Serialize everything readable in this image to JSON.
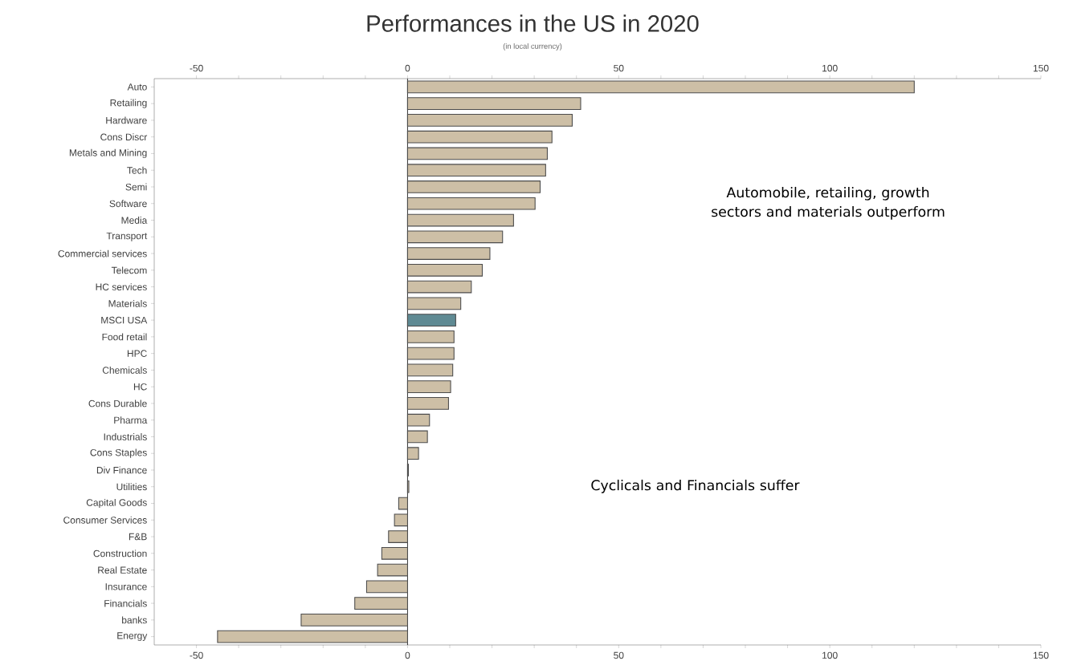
{
  "chart_data": {
    "type": "bar",
    "orientation": "horizontal",
    "title": "Performances in the US in 2020",
    "subtitle": "(in local currency)",
    "categories": [
      "Auto",
      "Retailing",
      "Hardware",
      "Cons Discr",
      "Metals and Mining",
      "Tech",
      "Semi",
      "Software",
      "Media",
      "Transport",
      "Commercial services",
      "Telecom",
      "HC services",
      "Materials",
      "MSCI USA",
      "Food retail",
      "HPC",
      "Chemicals",
      "HC",
      "Cons Durable",
      "Pharma",
      "Industrials",
      "Cons Staples",
      "Div Finance",
      "Utilities",
      "Capital Goods",
      "Consumer Services",
      "F&B",
      "Construction",
      "Real Estate",
      "Insurance",
      "Financials",
      "banks",
      "Energy"
    ],
    "values": [
      120,
      41,
      39,
      34.2,
      33.1,
      32.7,
      31.4,
      30.2,
      25.1,
      22.5,
      19.5,
      17.7,
      15.1,
      12.6,
      11.4,
      11.0,
      11.0,
      10.7,
      10.2,
      9.7,
      5.2,
      4.7,
      2.6,
      0.2,
      0.3,
      -2.1,
      -3.1,
      -4.5,
      -6.1,
      -7.1,
      -9.7,
      -12.5,
      -25.2,
      -45.0
    ],
    "colors": [
      "#cdbfa6",
      "#cdbfa6",
      "#cdbfa6",
      "#cdbfa6",
      "#cdbfa6",
      "#cdbfa6",
      "#cdbfa6",
      "#cdbfa6",
      "#cdbfa6",
      "#cdbfa6",
      "#cdbfa6",
      "#cdbfa6",
      "#cdbfa6",
      "#cdbfa6",
      "#5f8a93",
      "#cdbfa6",
      "#cdbfa6",
      "#cdbfa6",
      "#cdbfa6",
      "#cdbfa6",
      "#cdbfa6",
      "#cdbfa6",
      "#cdbfa6",
      "#cdbfa6",
      "#cdbfa6",
      "#cdbfa6",
      "#cdbfa6",
      "#cdbfa6",
      "#cdbfa6",
      "#cdbfa6",
      "#cdbfa6",
      "#cdbfa6",
      "#cdbfa6",
      "#cdbfa6"
    ],
    "xlim": [
      -60,
      150
    ],
    "xticks": [
      -50,
      {
        "value": -40,
        "label": null
      },
      {
        "value": -30,
        "label": null
      },
      {
        "value": -20,
        "label": null
      },
      {
        "value": -10,
        "label": null
      },
      0,
      {
        "value": 10,
        "label": null
      },
      {
        "value": 20,
        "label": null
      },
      {
        "value": 30,
        "label": null
      },
      {
        "value": 40,
        "label": null
      },
      50,
      {
        "value": 60,
        "label": null
      },
      {
        "value": 70,
        "label": null
      },
      {
        "value": 80,
        "label": null
      },
      {
        "value": 90,
        "label": null
      },
      100,
      {
        "value": 110,
        "label": null
      },
      {
        "value": 120,
        "label": null
      },
      {
        "value": 130,
        "label": null
      },
      {
        "value": 140,
        "label": null
      },
      150
    ],
    "x2lim": [
      -60,
      150
    ],
    "x2ticks": [
      -50,
      {
        "value": -40,
        "label": null
      },
      {
        "value": -30,
        "label": null
      },
      {
        "value": -20,
        "label": null
      },
      {
        "value": -10,
        "label": null
      },
      0,
      {
        "value": 10,
        "label": null
      },
      {
        "value": 20,
        "label": null
      },
      {
        "value": 30,
        "label": null
      },
      {
        "value": 40,
        "label": null
      },
      50,
      {
        "value": 60,
        "label": null
      },
      {
        "value": 70,
        "label": null
      },
      {
        "value": 80,
        "label": null
      },
      {
        "value": 90,
        "label": null
      },
      100,
      {
        "value": 110,
        "label": null
      },
      {
        "value": 120,
        "label": null
      },
      {
        "value": 130,
        "label": null
      },
      {
        "value": 140,
        "label": null
      },
      150
    ],
    "ref_lines": [
      {
        "axis": "x",
        "value": 0,
        "color": "#000000"
      }
    ],
    "grid": false,
    "annotations": [
      "Automobile, retailing, growth sectors and materials outperform",
      "Cyclicals and Financials suffer"
    ]
  }
}
